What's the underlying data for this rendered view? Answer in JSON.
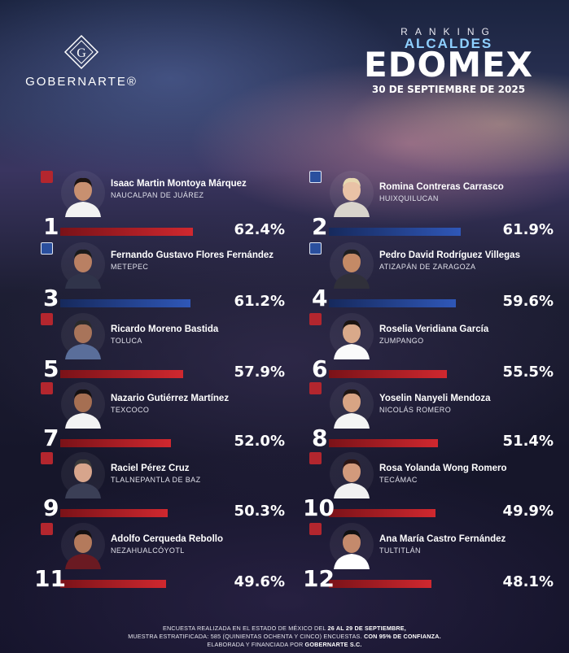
{
  "brand": {
    "name": "GOBERNARTE®"
  },
  "header": {
    "ranking": "RANKING",
    "subtitle": "ALCALDES",
    "title": "EDOMEX",
    "date": "30 DE SEPTIEMBRE DE 2025"
  },
  "colors": {
    "morena": "#b3262e",
    "pan": "#2a4f9e",
    "accent": "#8fd0ff"
  },
  "chart_data": {
    "type": "bar",
    "title": "EDOMEX",
    "unit": "%",
    "ylim": [
      0,
      100
    ],
    "items": [
      {
        "rank": "1",
        "name": "Isaac Martin Montoya Márquez",
        "municipality": "NAUCALPAN DE JUÁREZ",
        "value": 62.4,
        "label": "62.4%",
        "party": "morena"
      },
      {
        "rank": "2",
        "name": "Romina Contreras Carrasco",
        "municipality": "HUIXQUILUCAN",
        "value": 61.9,
        "label": "61.9%",
        "party": "pan"
      },
      {
        "rank": "3",
        "name": "Fernando Gustavo Flores Fernández",
        "municipality": "METEPEC",
        "value": 61.2,
        "label": "61.2%",
        "party": "pan"
      },
      {
        "rank": "4",
        "name": "Pedro David Rodríguez Villegas",
        "municipality": "ATIZAPÁN DE ZARAGOZA",
        "value": 59.6,
        "label": "59.6%",
        "party": "pan"
      },
      {
        "rank": "5",
        "name": "Ricardo Moreno Bastida",
        "municipality": "TOLUCA",
        "value": 57.9,
        "label": "57.9%",
        "party": "morena"
      },
      {
        "rank": "6",
        "name": "Roselia Veridiana García",
        "municipality": "ZUMPANGO",
        "value": 55.5,
        "label": "55.5%",
        "party": "morena"
      },
      {
        "rank": "7",
        "name": "Nazario Gutiérrez Martínez",
        "municipality": "TEXCOCO",
        "value": 52.0,
        "label": "52.0%",
        "party": "morena"
      },
      {
        "rank": "8",
        "name": "Yoselin Nanyeli Mendoza",
        "municipality": "NICOLÁS ROMERO",
        "value": 51.4,
        "label": "51.4%",
        "party": "morena"
      },
      {
        "rank": "9",
        "name": "Raciel Pérez Cruz",
        "municipality": "TLALNEPANTLA DE BAZ",
        "value": 50.3,
        "label": "50.3%",
        "party": "morena"
      },
      {
        "rank": "10",
        "name": "Rosa Yolanda Wong Romero",
        "municipality": "TECÁMAC",
        "value": 49.9,
        "label": "49.9%",
        "party": "morena"
      },
      {
        "rank": "11",
        "name": "Adolfo Cerqueda Rebollo",
        "municipality": "NEZAHUALCÓYOTL",
        "value": 49.6,
        "label": "49.6%",
        "party": "morena"
      },
      {
        "rank": "12",
        "name": "Ana María Castro Fernández",
        "municipality": "TULTITLÁN",
        "value": 48.1,
        "label": "48.1%",
        "party": "morena"
      }
    ]
  },
  "footer": {
    "line1_a": "ENCUESTA REALIZADA EN EL ESTADO DE MÉXICO DEL ",
    "line1_b": "26 AL 29 DE SEPTIEMBRE,",
    "line2_a": "MUESTRA ESTRATIFICADA: 585 (QUINIENTAS OCHENTA Y CINCO) ENCUESTAS. ",
    "line2_b": "CON 95% DE CONFIANZA.",
    "line3_a": "ELABORADA Y FINANCIADA POR ",
    "line3_b": "GOBERNARTE S.C."
  }
}
